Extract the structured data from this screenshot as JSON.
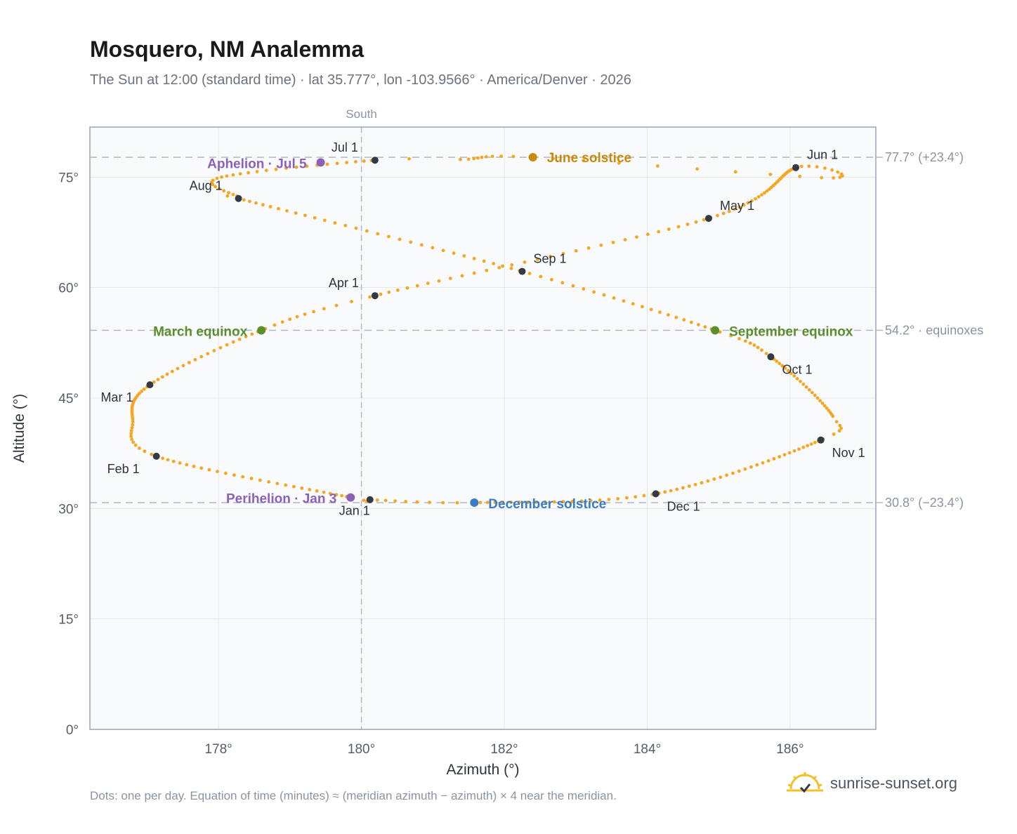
{
  "header": {
    "title": "Mosquero, NM Analemma",
    "subtitle": "The Sun at 12:00 (standard time) · lat 35.777°, lon -103.9566° · America/Denver · 2026"
  },
  "footer": {
    "note": "Dots: one per day. Equation of time (minutes) ≈ (meridian azimuth − azimuth) × 4 near the meridian.",
    "brand": "sunrise-sunset.org"
  },
  "colors": {
    "path": "#f5a623",
    "month_marker": "#333a44",
    "june": "#c98a0a",
    "december": "#3b7cc4",
    "equinox": "#5a8f2e",
    "perihelion": "#8b62b8",
    "ref_line": "#b0b8c2",
    "plot_bg": "#f8fafc",
    "frame": "#9aa6b2",
    "grid": "#e3e8ee"
  },
  "chart_data": {
    "type": "scatter",
    "xlabel": "Azimuth (°)",
    "ylabel": "Altitude (°)",
    "xlim": [
      176.2,
      187.2
    ],
    "ylim": [
      0,
      81.8
    ],
    "xticks": [
      178,
      180,
      182,
      184,
      186
    ],
    "xtick_labels": [
      "178°",
      "180°",
      "182°",
      "184°",
      "186°"
    ],
    "yticks": [
      0,
      15,
      30,
      45,
      60,
      75
    ],
    "ytick_labels": [
      "0°",
      "15°",
      "30°",
      "45°",
      "60°",
      "75°"
    ],
    "grid": true,
    "meridian": {
      "x": 180,
      "label": "South"
    },
    "reference_lines": [
      {
        "y": 77.7,
        "label": "77.7° (+23.4°)"
      },
      {
        "y": 54.2,
        "label": "54.2° · equinoxes"
      },
      {
        "y": 30.8,
        "label": "30.8° (−23.4°)"
      }
    ],
    "path_description": "one dot per day",
    "month_markers": [
      {
        "label": "Jan 1",
        "x": 180.12,
        "y": 31.2
      },
      {
        "label": "Feb 1",
        "x": 177.13,
        "y": 37.1
      },
      {
        "label": "Mar 1",
        "x": 177.04,
        "y": 46.8
      },
      {
        "label": "Apr 1",
        "x": 180.19,
        "y": 58.9
      },
      {
        "label": "May 1",
        "x": 184.86,
        "y": 69.4
      },
      {
        "label": "Jun 1",
        "x": 186.08,
        "y": 76.3
      },
      {
        "label": "Jul 1",
        "x": 180.19,
        "y": 77.3
      },
      {
        "label": "Aug 1",
        "x": 178.28,
        "y": 72.1
      },
      {
        "label": "Sep 1",
        "x": 182.25,
        "y": 62.2
      },
      {
        "label": "Oct 1",
        "x": 185.73,
        "y": 50.6
      },
      {
        "label": "Nov 1",
        "x": 186.43,
        "y": 39.3
      },
      {
        "label": "Dec 1",
        "x": 184.12,
        "y": 32.0
      }
    ],
    "events": [
      {
        "label": "June solstice",
        "x": 182.4,
        "y": 77.7,
        "color": "june"
      },
      {
        "label": "December solstice",
        "x": 181.58,
        "y": 30.8,
        "color": "december"
      },
      {
        "label": "March equinox",
        "x": 178.6,
        "y": 54.2,
        "color": "equinox"
      },
      {
        "label": "September equinox",
        "x": 184.95,
        "y": 54.2,
        "color": "equinox"
      },
      {
        "label": "Aphelion · Jul 5",
        "x": 179.43,
        "y": 77.0,
        "color": "perihelion"
      },
      {
        "label": "Perihelion · Jan 3",
        "x": 179.85,
        "y": 31.5,
        "color": "perihelion"
      }
    ]
  }
}
